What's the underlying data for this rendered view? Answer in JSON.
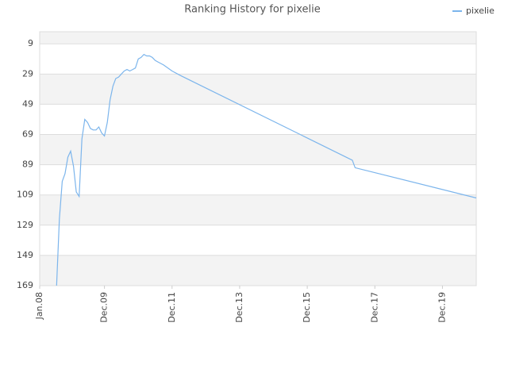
{
  "chart_data": {
    "type": "line",
    "title": "Ranking History for pixelie",
    "x": [
      "2008-07",
      "2008-08",
      "2008-09",
      "2008-10",
      "2008-11",
      "2008-12",
      "2009-01",
      "2009-02",
      "2009-03",
      "2009-04",
      "2009-05",
      "2009-06",
      "2009-07",
      "2009-08",
      "2009-09",
      "2009-10",
      "2009-11",
      "2009-12",
      "2010-01",
      "2010-02",
      "2010-03",
      "2010-04",
      "2010-05",
      "2010-06",
      "2010-07",
      "2010-08",
      "2010-09",
      "2010-10",
      "2010-11",
      "2010-12",
      "2011-01",
      "2011-02",
      "2011-03",
      "2011-04",
      "2011-05",
      "2011-06",
      "2011-07",
      "2011-08",
      "2011-09",
      "2011-12",
      "2012-03",
      "2017-04",
      "2017-05",
      "2020-12"
    ],
    "series": [
      {
        "name": "pixelie",
        "color": "#7cb5ec",
        "values": [
          169,
          125,
          100,
          95,
          84,
          80,
          90,
          107,
          110,
          72,
          59,
          61,
          65,
          66,
          66,
          64,
          68,
          70,
          61,
          46,
          37,
          32,
          31,
          29,
          27,
          26,
          27,
          26,
          25,
          19,
          18,
          16,
          17,
          17,
          18,
          20,
          21,
          22,
          23,
          27,
          30,
          86,
          91,
          111
        ]
      }
    ],
    "xlim": [
      "2008-01",
      "2020-12"
    ],
    "xticks": [
      {
        "value": "2008-01",
        "label": "Jan.08"
      },
      {
        "value": "2009-12",
        "label": "Dec.09"
      },
      {
        "value": "2011-12",
        "label": "Dec.11"
      },
      {
        "value": "2013-12",
        "label": "Dec.13"
      },
      {
        "value": "2015-12",
        "label": "Dec.15"
      },
      {
        "value": "2017-12",
        "label": "Dec.17"
      },
      {
        "value": "2019-12",
        "label": "Dec.19"
      }
    ],
    "ylim": [
      169,
      1
    ],
    "yticks": [
      9,
      29,
      49,
      69,
      89,
      109,
      129,
      149,
      169
    ],
    "grid": true,
    "legend": "top-right"
  }
}
